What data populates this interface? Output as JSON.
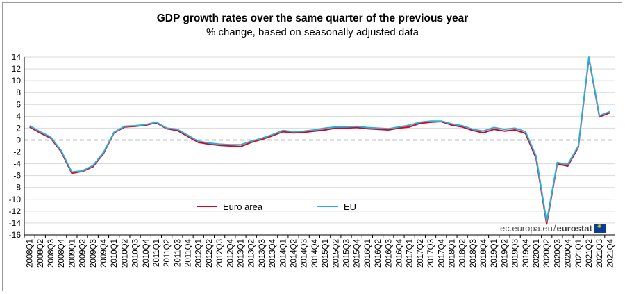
{
  "chart_data": {
    "type": "line",
    "title": "GDP growth rates over the same quarter of the previous year",
    "subtitle": "% change, based on seasonally adjusted data",
    "xlabel": "",
    "ylabel": "",
    "ylim": [
      -16,
      14
    ],
    "yticks": [
      14,
      12,
      10,
      8,
      6,
      4,
      2,
      0,
      -2,
      -4,
      -6,
      -8,
      -10,
      -12,
      -14,
      -16
    ],
    "grid": true,
    "legend_position": "bottom-left",
    "categories": [
      "2008Q1",
      "2008Q2",
      "2008Q3",
      "2008Q4",
      "2009Q1",
      "2009Q2",
      "2009Q3",
      "2009Q4",
      "2010Q1",
      "2010Q2",
      "2010Q3",
      "2010Q4",
      "2011Q1",
      "2011Q2",
      "2011Q3",
      "2011Q4",
      "2012Q1",
      "2012Q2",
      "2012Q3",
      "2012Q4",
      "2013Q1",
      "2013Q2",
      "2013Q3",
      "2013Q4",
      "2014Q1",
      "2014Q2",
      "2014Q3",
      "2014Q4",
      "2015Q1",
      "2015Q2",
      "2015Q3",
      "2015Q4",
      "2016Q1",
      "2016Q2",
      "2016Q3",
      "2016Q4",
      "2017Q1",
      "2017Q2",
      "2017Q3",
      "2017Q4",
      "2018Q1",
      "2018Q2",
      "2018Q3",
      "2018Q4",
      "2019Q1",
      "2019Q2",
      "2019Q3",
      "2019Q4",
      "2020Q1",
      "2020Q2",
      "2020Q3",
      "2020Q4",
      "2021Q1",
      "2021Q2",
      "2021Q3",
      "2021Q4"
    ],
    "series": [
      {
        "name": "Euro area",
        "color": "#e2001a",
        "values": [
          2.2,
          1.2,
          0.3,
          -2.0,
          -5.6,
          -5.3,
          -4.5,
          -2.3,
          1.2,
          2.2,
          2.3,
          2.5,
          2.9,
          1.9,
          1.6,
          0.6,
          -0.4,
          -0.7,
          -0.9,
          -1.0,
          -1.1,
          -0.4,
          0.1,
          0.7,
          1.4,
          1.2,
          1.3,
          1.5,
          1.7,
          2.0,
          2.0,
          2.1,
          1.9,
          1.8,
          1.7,
          2.0,
          2.2,
          2.8,
          3.0,
          3.1,
          2.5,
          2.2,
          1.6,
          1.2,
          1.8,
          1.5,
          1.7,
          1.1,
          -3.1,
          -14.2,
          -4.0,
          -4.4,
          -1.2,
          13.8,
          3.9,
          4.6
        ]
      },
      {
        "name": "EU",
        "color": "#2ab0d8",
        "values": [
          2.4,
          1.4,
          0.5,
          -1.8,
          -5.4,
          -5.2,
          -4.3,
          -2.1,
          1.3,
          2.3,
          2.4,
          2.6,
          3.0,
          2.0,
          1.8,
          0.8,
          -0.2,
          -0.5,
          -0.7,
          -0.8,
          -0.8,
          -0.2,
          0.3,
          0.9,
          1.6,
          1.4,
          1.5,
          1.7,
          2.0,
          2.2,
          2.2,
          2.3,
          2.1,
          2.0,
          1.9,
          2.2,
          2.5,
          3.0,
          3.2,
          3.2,
          2.7,
          2.4,
          1.8,
          1.5,
          2.1,
          1.8,
          2.0,
          1.4,
          -2.7,
          -13.8,
          -3.8,
          -4.1,
          -1.0,
          14.0,
          4.1,
          4.8
        ]
      }
    ]
  },
  "branding": {
    "domain": "ec.europa.eu",
    "separator": "/",
    "name": "eurostat",
    "flag_icon": "eu-flag-icon"
  }
}
